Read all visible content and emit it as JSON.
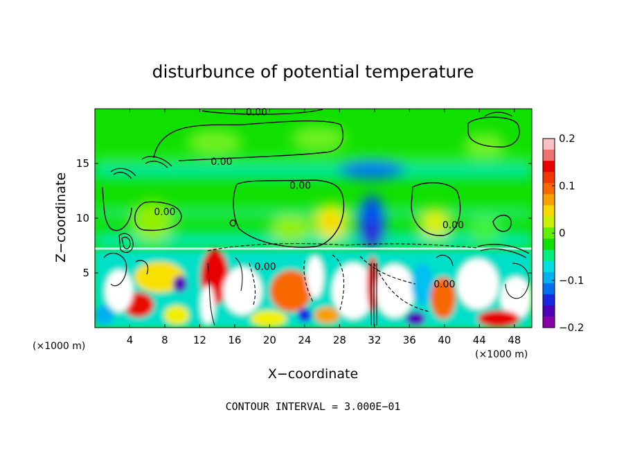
{
  "chart_data": {
    "type": "heatmap",
    "title": "disturbunce of potential temperature",
    "xlabel": "X−coordinate",
    "ylabel": "Z−coordinate",
    "x_unit": "(×1000 m)",
    "z_unit": "(×1000 m)",
    "footer": "CONTOUR INTERVAL = 3.000E−01",
    "xlim": [
      0,
      50
    ],
    "ylim": [
      0,
      20
    ],
    "x_ticks": [
      4,
      8,
      12,
      16,
      20,
      24,
      28,
      32,
      36,
      40,
      44,
      48
    ],
    "x_tick_labels": [
      "4",
      "8",
      "12",
      "16",
      "20",
      "24",
      "28",
      "32",
      "36",
      "40",
      "44",
      "48"
    ],
    "y_ticks": [
      5,
      10,
      15
    ],
    "y_tick_labels": [
      "5",
      "10",
      "15"
    ],
    "contour_labels": [
      {
        "text": "0.00",
        "x": 18.5,
        "z": 19.7
      },
      {
        "text": "0.00",
        "x": 14.5,
        "z": 15.2
      },
      {
        "text": "0.00",
        "x": 23.5,
        "z": 13.0
      },
      {
        "text": "0.00",
        "x": 8.0,
        "z": 10.6
      },
      {
        "text": "0.00",
        "x": 19.5,
        "z": 5.6
      },
      {
        "text": "0.00",
        "x": 41.0,
        "z": 9.4
      },
      {
        "text": "0.00",
        "x": 40.0,
        "z": 4.0
      }
    ],
    "colorbar": {
      "min": -0.2,
      "max": 0.2,
      "tick_values": [
        0.2,
        0.1,
        0,
        -0.1,
        -0.2
      ],
      "tick_labels": [
        "0.2",
        "0.1",
        "0",
        "−0.1",
        "−0.2"
      ],
      "colors": [
        "#f9c1c1",
        "#f07070",
        "#e80000",
        "#f03800",
        "#f86800",
        "#f8a000",
        "#f8d800",
        "#c8f000",
        "#60f000",
        "#10e000",
        "#00f080",
        "#00e0e0",
        "#00b0f0",
        "#0070f0",
        "#1828e0",
        "#5000b8",
        "#8800a8"
      ]
    },
    "fields": {
      "upper_layer": "weak disturbance near 0 (green) with positive patches near x 26-28, 36-40 and negative column near x 30-33",
      "lower_layer": "strong mixed positive and negative disturbance below z 7"
    }
  }
}
